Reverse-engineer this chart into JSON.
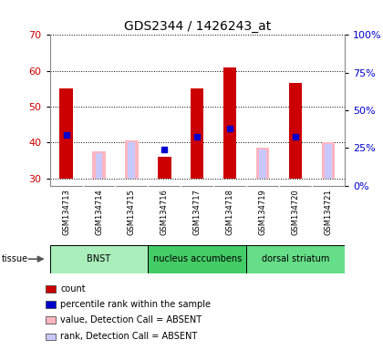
{
  "title": "GDS2344 / 1426243_at",
  "samples": [
    "GSM134713",
    "GSM134714",
    "GSM134715",
    "GSM134716",
    "GSM134717",
    "GSM134718",
    "GSM134719",
    "GSM134720",
    "GSM134721"
  ],
  "ylim_left": [
    28,
    70
  ],
  "ylim_right": [
    0,
    100
  ],
  "yticks_left": [
    30,
    40,
    50,
    60,
    70
  ],
  "yticks_right": [
    0,
    25,
    50,
    75,
    100
  ],
  "ytick_labels_right": [
    "0%",
    "25%",
    "50%",
    "75%",
    "100%"
  ],
  "red_bar_bottom": 30,
  "red_bars": [
    55,
    null,
    null,
    36,
    55,
    61,
    null,
    56.5,
    null
  ],
  "pink_bars_top": [
    null,
    37.5,
    40.5,
    null,
    null,
    null,
    38.5,
    null,
    40
  ],
  "blue_squares_y": [
    42,
    null,
    null,
    38,
    41.5,
    44,
    null,
    41.5,
    null
  ],
  "lavender_bars_top": [
    null,
    37,
    40,
    null,
    null,
    null,
    38,
    null,
    39.5
  ],
  "tissue_groups": [
    {
      "label": "BNST",
      "start": 0,
      "end": 3,
      "color": "#AAEEBB"
    },
    {
      "label": "nucleus accumbens",
      "start": 3,
      "end": 6,
      "color": "#44CC66"
    },
    {
      "label": "dorsal striatum",
      "start": 6,
      "end": 9,
      "color": "#66DD88"
    }
  ],
  "legend_items": [
    {
      "color": "#CC0000",
      "label": "count"
    },
    {
      "color": "#0000CC",
      "label": "percentile rank within the sample"
    },
    {
      "color": "#FFB6C1",
      "label": "value, Detection Call = ABSENT"
    },
    {
      "color": "#C8C8FF",
      "label": "rank, Detection Call = ABSENT"
    }
  ],
  "bg_color": "#ffffff",
  "red_color": "#CC0000",
  "blue_color": "#0000CC",
  "pink_color": "#FFB6C1",
  "lavender_color": "#C8C8FF",
  "tick_label_color_left": "#CC0000",
  "tick_label_color_right": "#0000CC"
}
